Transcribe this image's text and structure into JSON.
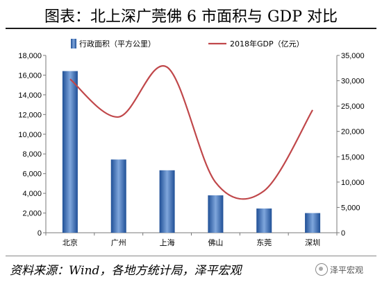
{
  "title": "图表：北上深广莞佛 6 市面积与 GDP 对比",
  "source": "资料来源：Wind，各地方统计局，泽平宏观",
  "watermark": "泽平宏观",
  "colors": {
    "bar": "#3f6fb3",
    "line": "#c0474a"
  },
  "chart_data": {
    "type": "bar",
    "categories": [
      "北京",
      "广州",
      "上海",
      "佛山",
      "东莞",
      "深圳"
    ],
    "series": [
      {
        "name": "行政面积（平方公里）",
        "type": "bar",
        "axis": "left",
        "values": [
          16410,
          7434,
          6341,
          3798,
          2460,
          1997
        ]
      },
      {
        "name": "2018年GDP（亿元）",
        "type": "line",
        "axis": "right",
        "values": [
          30320,
          22859,
          32680,
          9936,
          8279,
          24222
        ]
      }
    ],
    "y_left": {
      "lim": [
        0,
        18000
      ],
      "ticks": [
        "0",
        "2,000",
        "4,000",
        "6,000",
        "8,000",
        "10,000",
        "12,000",
        "14,000",
        "16,000",
        "18,000"
      ]
    },
    "y_right": {
      "lim": [
        0,
        35000
      ],
      "ticks": [
        "0",
        "5,000",
        "10,000",
        "15,000",
        "20,000",
        "25,000",
        "30,000",
        "35,000"
      ]
    },
    "legend_position": "top"
  }
}
